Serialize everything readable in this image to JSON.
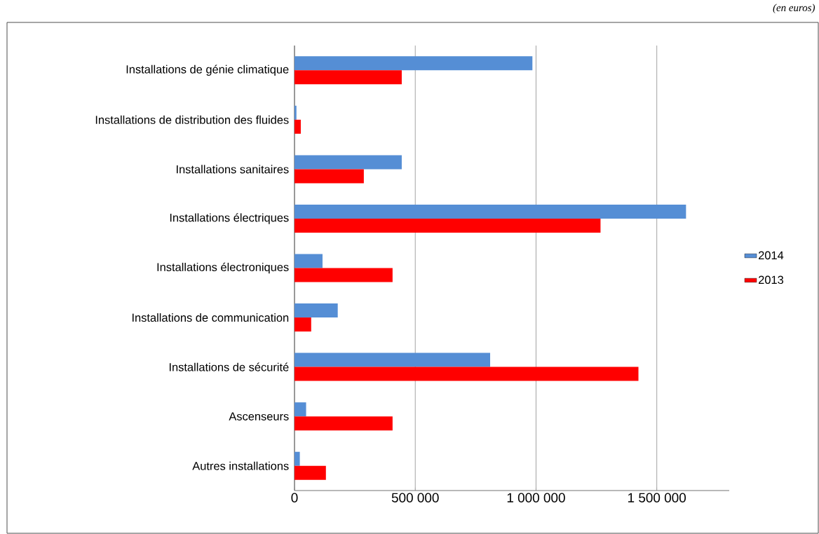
{
  "chart_data": {
    "type": "bar",
    "orientation": "horizontal",
    "annotations": [
      "(en euros)"
    ],
    "categories": [
      "Installations de génie climatique",
      "Installations de distribution des fluides",
      "Installations sanitaires",
      "Installations électriques",
      "Installations électroniques",
      "Installations de communication",
      "Installations de sécurité",
      "Ascenseurs",
      "Autres installations"
    ],
    "series": [
      {
        "name": "2014",
        "color": "#558ed5",
        "values": [
          985000,
          8000,
          444000,
          1621000,
          116000,
          179000,
          810000,
          48000,
          22000
        ]
      },
      {
        "name": "2013",
        "color": "#ff0000",
        "values": [
          444000,
          26000,
          287000,
          1267000,
          406000,
          69000,
          1424000,
          406000,
          130000
        ]
      }
    ],
    "xlim": [
      0,
      1800000
    ],
    "xticks": [
      0,
      {
        "value": 500000,
        "label": "500 000"
      },
      {
        "value": 1000000,
        "label": "1 000 000"
      },
      {
        "value": 1500000,
        "label": "1 500 000"
      }
    ],
    "grid": "x",
    "legend": "right"
  }
}
